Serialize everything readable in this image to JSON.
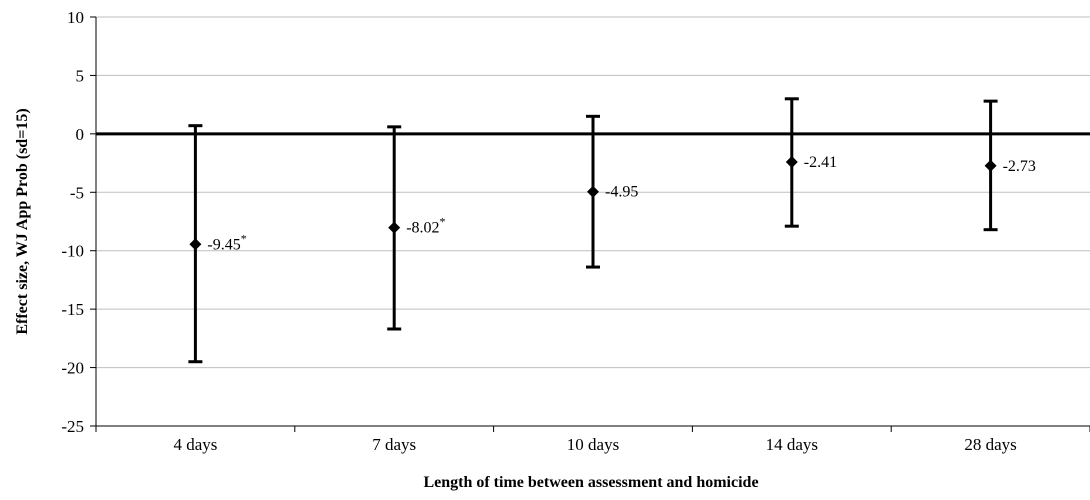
{
  "chart_data": {
    "type": "scatter",
    "title": "",
    "xlabel": "Length of time between assessment and homicide",
    "ylabel": "Effect size, WJ App Prob (sd=15)",
    "ylim": [
      -25,
      10
    ],
    "yticks": [
      10,
      5,
      0,
      -5,
      -10,
      -15,
      -20,
      -25
    ],
    "ytick_labels": [
      "10",
      "5",
      "0",
      "-5",
      "-10",
      "-15",
      "-20",
      "-25"
    ],
    "grid": true,
    "reference_line": 0,
    "categories": [
      "4 days",
      "7 days",
      "10 days",
      "14 days",
      "28 days"
    ],
    "series": [
      {
        "values": [
          -9.45,
          -8.02,
          -4.95,
          -2.41,
          -2.73
        ],
        "lower": [
          -19.5,
          -16.7,
          -11.4,
          -7.9,
          -8.2
        ],
        "upper": [
          0.7,
          0.6,
          1.5,
          3.0,
          2.8
        ],
        "labels": [
          "-9.45",
          "-8.02",
          "-4.95",
          "-2.41",
          "-2.73"
        ],
        "significant": [
          true,
          true,
          false,
          false,
          false
        ]
      }
    ],
    "significance_marker": "*"
  },
  "colors": {
    "line": "#000000",
    "grid": "#bfbfbf"
  }
}
